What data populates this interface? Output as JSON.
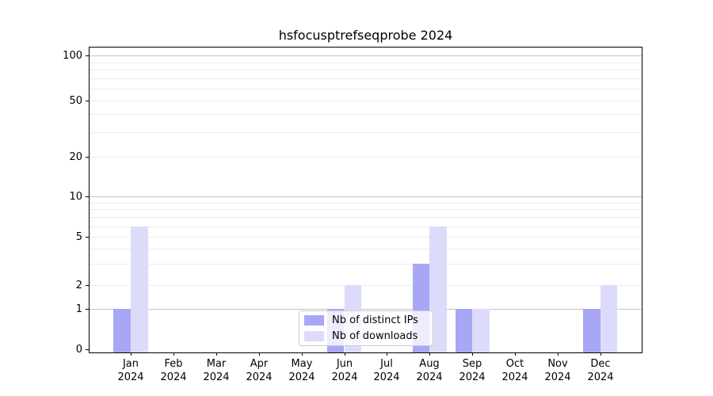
{
  "chart_data": {
    "type": "bar",
    "title": "hsfocusptrefseqprobe 2024",
    "categories": [
      "Jan",
      "Feb",
      "Mar",
      "Apr",
      "May",
      "Jun",
      "Jul",
      "Aug",
      "Sep",
      "Oct",
      "Nov",
      "Dec"
    ],
    "year_label": "2024",
    "series": [
      {
        "name": "Nb of distinct IPs",
        "color": "#a7a7f6",
        "values": [
          1,
          0,
          0,
          0,
          0,
          1,
          0,
          3,
          1,
          0,
          0,
          1
        ]
      },
      {
        "name": "Nb of downloads",
        "color": "#dcdcfa",
        "values": [
          6,
          0,
          0,
          0,
          0,
          2,
          0,
          6,
          1,
          0,
          0,
          2
        ]
      }
    ],
    "yscale": "symlog",
    "ylim": [
      0,
      113
    ],
    "ytick_values": [
      0,
      1,
      2,
      5,
      10,
      20,
      50,
      100
    ],
    "ytick_labels": [
      "0",
      "1",
      "2",
      "5",
      "10",
      "20",
      "50",
      "100"
    ],
    "major_grid_values": [
      1,
      10,
      100
    ],
    "minor_grid_values": [
      2,
      3,
      4,
      5,
      6,
      7,
      8,
      9,
      20,
      30,
      40,
      50,
      60,
      70,
      80,
      90
    ],
    "grid": true,
    "legend_position": "lower center",
    "colors": {
      "major_grid": "#c3c3c3",
      "minor_grid": "#ebebeb",
      "axis": "#000000",
      "background": "#ffffff"
    }
  }
}
